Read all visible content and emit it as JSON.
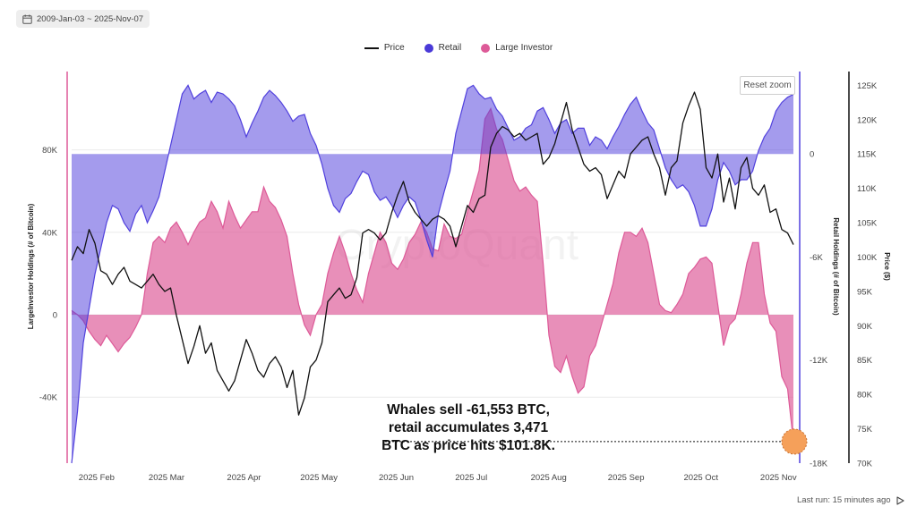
{
  "header": {
    "date_range": "2009-Jan-03 ~ 2025-Nov-07",
    "reset_zoom_label": "Reset zoom"
  },
  "footer": {
    "last_run": "Last run: 15 minutes ago"
  },
  "icons": {
    "calendar": "calendar-icon",
    "play": "play-icon"
  },
  "colors": {
    "price": "#111111",
    "retail": "#5040dd",
    "large_investor": "#dd5a98",
    "highlight": "#f5a05a"
  },
  "chart_data": {
    "type": "area",
    "title": "",
    "watermark": "CryptoQuant",
    "legend": [
      "Price",
      "Retail",
      "Large Investor"
    ],
    "x": {
      "start": "2025-01-22",
      "end": "2025-11-07",
      "tick_labels": [
        "2025 Feb",
        "2025 Mar",
        "2025 Apr",
        "2025 May",
        "2025 Jun",
        "2025 Jul",
        "2025 Aug",
        "2025 Sep",
        "2025 Oct",
        "2025 Nov"
      ]
    },
    "axes": {
      "left": {
        "label": "LargeInvestor Holdings (# of Bitcoin)",
        "range": [
          -72000,
          118000
        ],
        "ticks": [
          80000,
          40000,
          0,
          -40000
        ],
        "tick_labels": [
          "80K",
          "40K",
          "0",
          "-40K"
        ]
      },
      "right_inner": {
        "label": "Retail Holdings (# of Bitcoin)",
        "range": [
          -18000,
          4800
        ],
        "ticks": [
          0,
          -6000,
          -12000,
          -18000
        ],
        "tick_labels": [
          "0",
          "-6K",
          "-12K",
          "-18K"
        ]
      },
      "right_outer": {
        "label": "Price ($)",
        "range": [
          70000,
          127000
        ],
        "ticks": [
          125000,
          120000,
          115000,
          110000,
          105000,
          100000,
          95000,
          90000,
          85000,
          80000,
          75000,
          70000
        ],
        "tick_labels": [
          "125K",
          "120K",
          "115K",
          "110K",
          "105K",
          "100K",
          "95K",
          "90K",
          "85K",
          "80K",
          "75K",
          "70K"
        ]
      }
    },
    "series": [
      {
        "name": "Price",
        "axis": "right_outer",
        "values": [
          99500,
          101500,
          100500,
          104000,
          102000,
          98000,
          97500,
          96000,
          97500,
          98500,
          96500,
          96000,
          95500,
          96500,
          97500,
          96000,
          95000,
          95500,
          91500,
          88000,
          84500,
          87000,
          90000,
          86000,
          87500,
          83500,
          82000,
          80500,
          82000,
          85000,
          88000,
          86000,
          83500,
          82500,
          84500,
          85500,
          84000,
          81000,
          83500,
          77000,
          79500,
          84000,
          85000,
          87500,
          93500,
          94500,
          95500,
          94000,
          94500,
          97000,
          103500,
          104000,
          103500,
          102500,
          103500,
          106500,
          109000,
          111000,
          108000,
          106500,
          105500,
          104500,
          105500,
          106000,
          105500,
          104500,
          101500,
          104500,
          107500,
          106500,
          108500,
          109000,
          116000,
          118000,
          119000,
          118500,
          117500,
          118000,
          117000,
          117500,
          118000,
          113500,
          114500,
          116500,
          119500,
          122500,
          118500,
          116000,
          113500,
          112500,
          113000,
          112000,
          108500,
          110500,
          112500,
          111500,
          115000,
          116000,
          117000,
          117500,
          115000,
          113000,
          109000,
          113000,
          114000,
          119500,
          122000,
          124000,
          121500,
          113000,
          111500,
          115000,
          108000,
          111500,
          107000,
          113000,
          114500,
          110000,
          109000,
          110500,
          106500,
          107000,
          104000,
          103500,
          101800
        ],
        "note": "sampled approximately every 2.3 days"
      },
      {
        "name": "Retail",
        "axis": "right_inner",
        "values": [
          -18000,
          -15000,
          -11000,
          -9000,
          -7000,
          -5500,
          -4000,
          -3000,
          -3200,
          -4000,
          -4500,
          -3500,
          -3000,
          -4000,
          -3300,
          -2500,
          -1000,
          500,
          2000,
          3500,
          4000,
          3200,
          3500,
          3700,
          3000,
          3600,
          3500,
          3200,
          2800,
          2000,
          1000,
          1800,
          2500,
          3300,
          3700,
          3400,
          3000,
          2500,
          1900,
          2200,
          2300,
          1200,
          500,
          -600,
          -2000,
          -3000,
          -3400,
          -2600,
          -2300,
          -1600,
          -1000,
          -1200,
          -2200,
          -2700,
          -2500,
          -3000,
          -3700,
          -3000,
          -2500,
          -2800,
          -3800,
          -5000,
          -6000,
          -3500,
          -2200,
          -1000,
          1200,
          2500,
          3800,
          4000,
          3500,
          3200,
          3300,
          2600,
          2200,
          1500,
          800,
          1000,
          1500,
          1700,
          2500,
          2700,
          2000,
          1200,
          1800,
          2000,
          1200,
          1500,
          1500,
          500,
          1000,
          800,
          300,
          1000,
          1600,
          2300,
          2900,
          3300,
          2500,
          1800,
          1400,
          300,
          -800,
          -1500,
          -2000,
          -1800,
          -2200,
          -3000,
          -4200,
          -4200,
          -3200,
          -1500,
          -500,
          -1000,
          -1800,
          -1500,
          -1500,
          -1000,
          200,
          1000,
          1500,
          2500,
          3000,
          3300,
          3471
        ],
        "note": "sampled approximately every 2.3 days"
      },
      {
        "name": "Large Investor",
        "axis": "left",
        "values": [
          2000,
          0,
          -3000,
          -8000,
          -12000,
          -15000,
          -10000,
          -14000,
          -18000,
          -14000,
          -11000,
          -6000,
          0,
          20000,
          35000,
          38000,
          35000,
          42000,
          45000,
          40000,
          34000,
          40000,
          45000,
          47000,
          55000,
          50000,
          42000,
          55000,
          48000,
          42000,
          46000,
          50000,
          50000,
          62000,
          55000,
          52000,
          46000,
          38000,
          20000,
          5000,
          -5000,
          -10000,
          0,
          5000,
          20000,
          30000,
          38000,
          30000,
          20000,
          12000,
          6000,
          20000,
          30000,
          40000,
          35000,
          25000,
          22000,
          27000,
          35000,
          39000,
          45000,
          40000,
          32000,
          31000,
          44000,
          38000,
          37000,
          39000,
          50000,
          60000,
          70000,
          95000,
          100000,
          90000,
          85000,
          75000,
          65000,
          60000,
          62000,
          58000,
          55000,
          25000,
          -10000,
          -25000,
          -28000,
          -20000,
          -30000,
          -38000,
          -35000,
          -20000,
          -15000,
          -5000,
          5000,
          15000,
          30000,
          40000,
          40000,
          38000,
          42000,
          35000,
          20000,
          5000,
          2000,
          1000,
          5000,
          10000,
          20000,
          23000,
          27000,
          28000,
          25000,
          5000,
          -15000,
          -5000,
          -2000,
          10000,
          25000,
          35000,
          35000,
          10000,
          -4000,
          -8000,
          -30000,
          -36000,
          -61553
        ],
        "note": "sampled approximately every 2.3 days"
      }
    ],
    "highlight_point": {
      "date": "2025-11-07",
      "large_investor_change": -61553,
      "retail_change": 3471,
      "price": 101800
    },
    "annotation": {
      "line1": "Whales sell -61,553 BTC,",
      "line2": "retail accumulates 3,471",
      "line3": "BTC as price hits $101.8K."
    }
  }
}
